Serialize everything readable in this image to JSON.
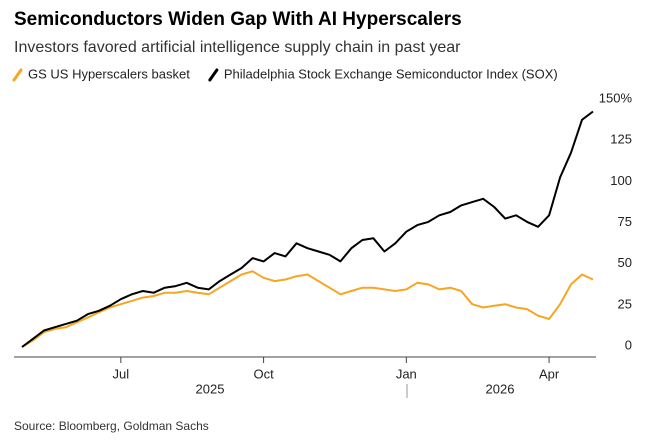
{
  "chart_data": {
    "type": "line",
    "title": "Semiconductors Widen Gap With AI Hyperscalers",
    "subtitle": "Investors favored artificial intelligence supply chain in past year",
    "source": "Source: Bloomberg, Goldman Sachs",
    "year_labels": [
      "2025",
      "2026"
    ],
    "categories": [
      null,
      null,
      null,
      null,
      null,
      null,
      null,
      null,
      null,
      "Jul",
      null,
      null,
      null,
      null,
      null,
      null,
      null,
      null,
      null,
      null,
      null,
      null,
      "Oct",
      null,
      null,
      null,
      null,
      null,
      null,
      null,
      null,
      null,
      null,
      null,
      null,
      "Jan",
      null,
      null,
      null,
      null,
      null,
      null,
      null,
      null,
      null,
      null,
      null,
      null,
      "Apr",
      null,
      null,
      null,
      null
    ],
    "series": [
      {
        "name": "GS US Hyperscalers basket",
        "color": "#f5a623",
        "values": [
          0,
          4,
          9,
          11,
          12,
          15,
          18,
          21,
          24,
          26,
          28,
          30,
          31,
          33,
          33,
          34,
          33,
          32,
          36,
          40,
          44,
          46,
          42,
          40,
          41,
          43,
          44,
          40,
          36,
          32,
          34,
          36,
          36,
          35,
          34,
          35,
          39,
          38,
          35,
          36,
          34,
          26,
          24,
          25,
          26,
          24,
          23,
          19,
          17,
          26,
          38,
          44,
          41
        ]
      },
      {
        "name": "Philadelphia Stock Exchange Semiconductor Index (SOX)",
        "color": "#000000",
        "values": [
          0,
          5,
          10,
          12,
          14,
          16,
          20,
          22,
          25,
          29,
          32,
          34,
          33,
          36,
          37,
          39,
          36,
          35,
          40,
          44,
          48,
          54,
          52,
          57,
          55,
          63,
          60,
          58,
          56,
          52,
          60,
          65,
          66,
          58,
          63,
          70,
          74,
          76,
          80,
          82,
          86,
          88,
          90,
          85,
          78,
          80,
          76,
          73,
          80,
          103,
          118,
          138,
          143
        ]
      }
    ],
    "ylim": [
      -4,
      150
    ],
    "yticks": [
      0,
      25,
      50,
      75,
      100,
      125,
      {
        "value": 150,
        "label": "150%"
      }
    ]
  }
}
